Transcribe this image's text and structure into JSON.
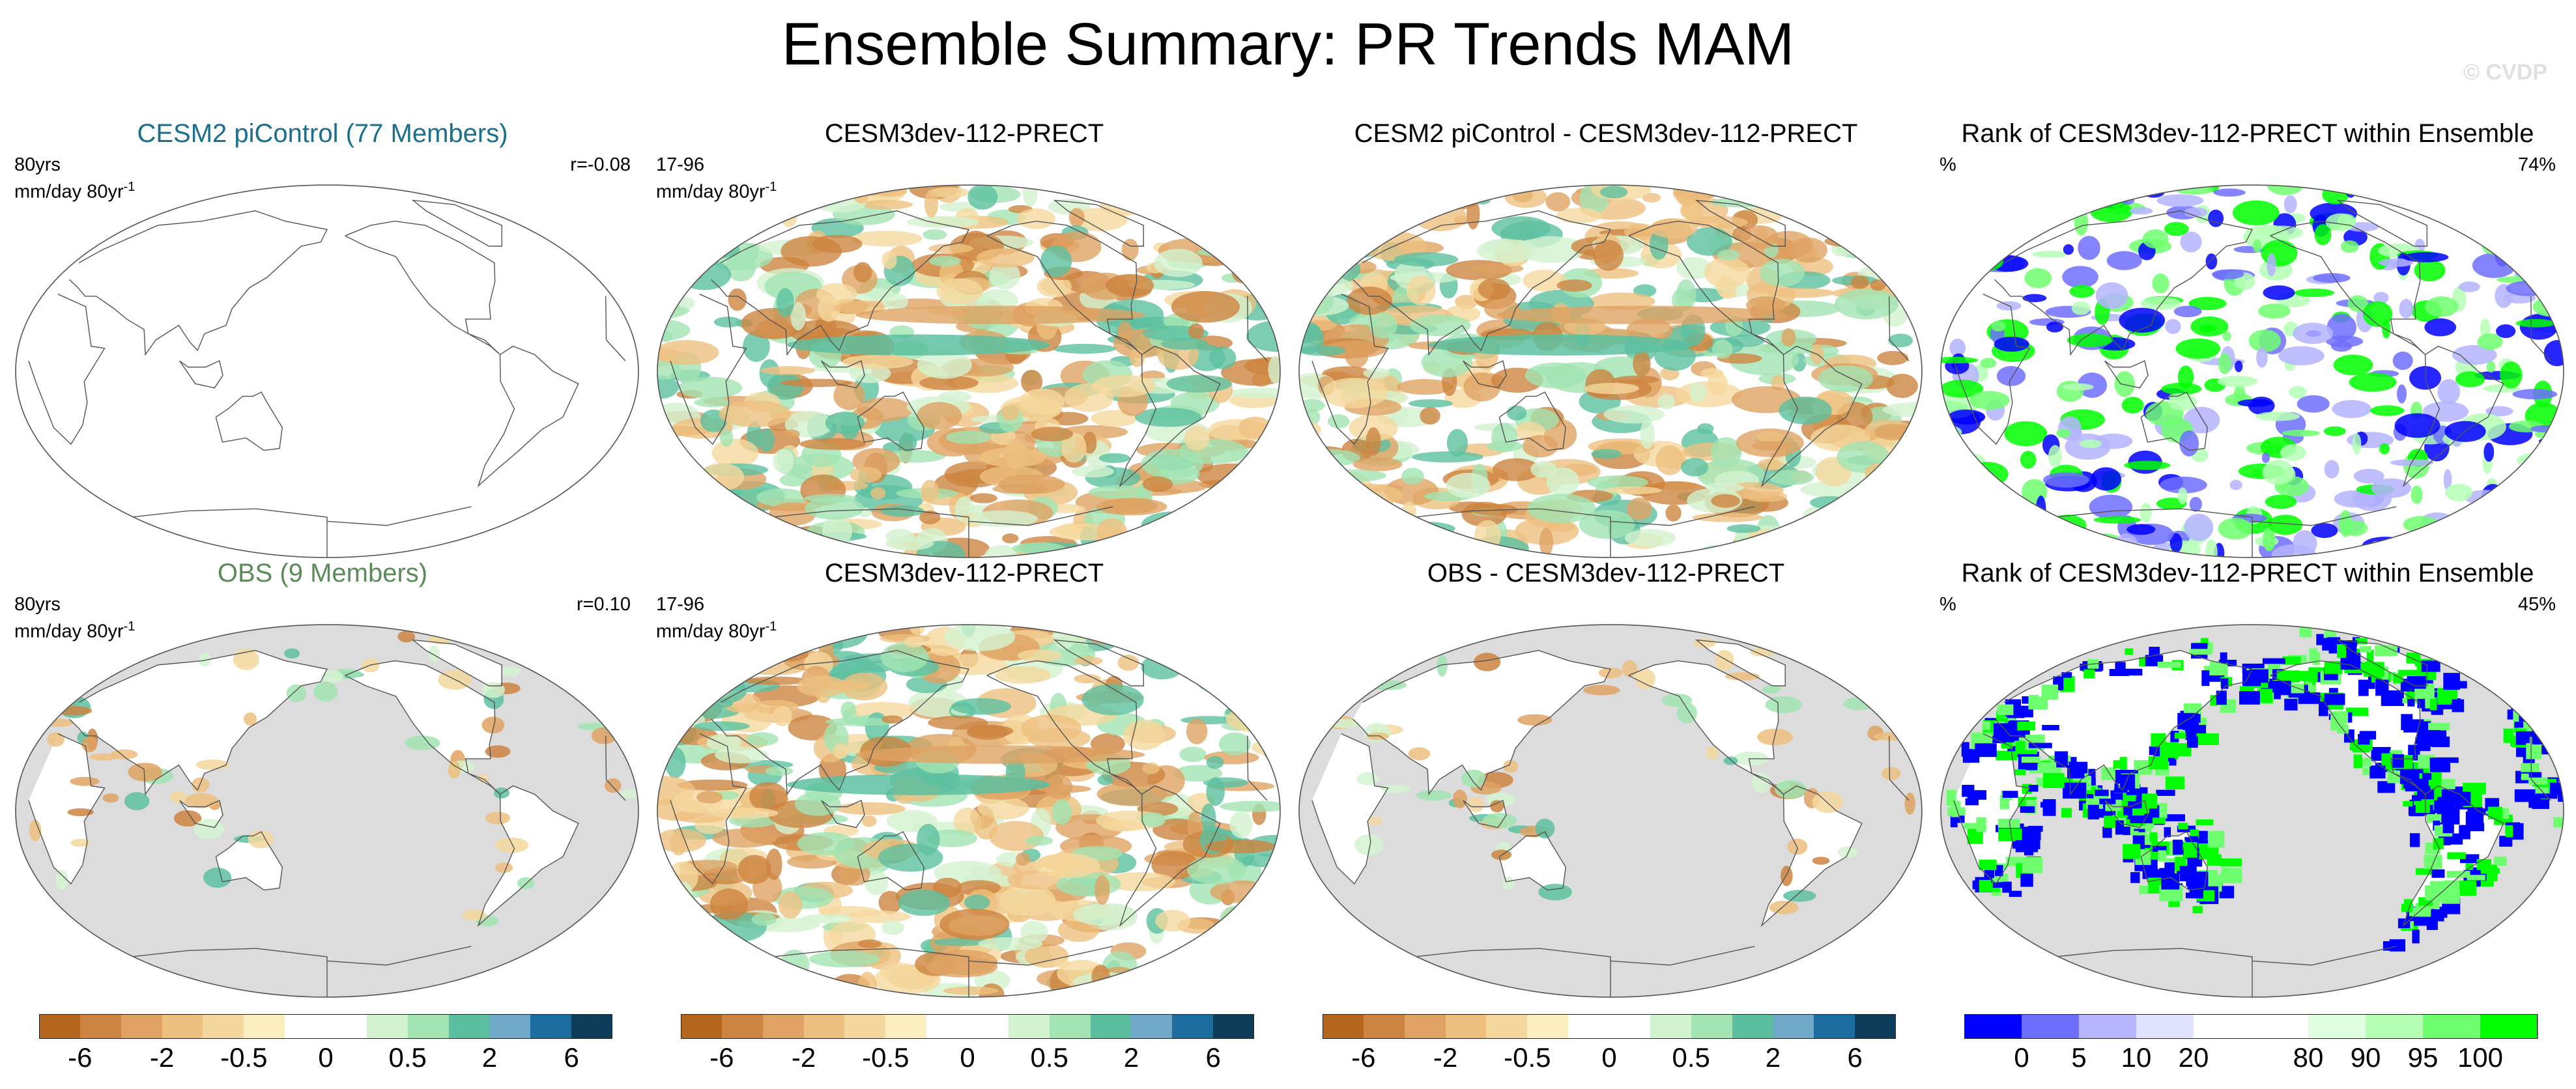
{
  "title": "Ensemble Summary: PR Trends MAM",
  "watermark": "© CVDP",
  "panels": [
    {
      "title": "CESM2 piControl (77 Members)",
      "title_color": "#1b6e8c",
      "l1": "80yrs",
      "l2": "mm/day 80yr",
      "r": "r=-0.08",
      "map": "piControl-mean"
    },
    {
      "title": "CESM3dev-112-PRECT",
      "title_color": "#000000",
      "l1": "17-96",
      "l2": "mm/day 80yr",
      "r": "",
      "map": "trend"
    },
    {
      "title": "CESM2 piControl - CESM3dev-112-PRECT",
      "title_color": "#000000",
      "l1": "",
      "l2": "",
      "r": "",
      "map": "difference"
    },
    {
      "title": "Rank of CESM3dev-112-PRECT within Ensemble",
      "title_color": "#000000",
      "l1": "%",
      "l2": "",
      "r": "74%",
      "map": "rank"
    },
    {
      "title": "OBS (9 Members)",
      "title_color": "#5b8a5b",
      "l1": "80yrs",
      "l2": "mm/day 80yr",
      "r": "r=0.10",
      "map": "obs-mean"
    },
    {
      "title": "CESM3dev-112-PRECT",
      "title_color": "#000000",
      "l1": "17-96",
      "l2": "mm/day 80yr",
      "r": "",
      "map": "trend"
    },
    {
      "title": "OBS - CESM3dev-112-PRECT",
      "title_color": "#000000",
      "l1": "",
      "l2": "",
      "r": "",
      "map": "obs-difference"
    },
    {
      "title": "Rank of CESM3dev-112-PRECT within Ensemble",
      "title_color": "#000000",
      "l1": "%",
      "l2": "",
      "r": "45%",
      "map": "rank-land"
    }
  ],
  "unit_superscript": "-1",
  "colorbars": [
    {
      "name": "precip-trend",
      "colors": [
        "#b5651d",
        "#cd8440",
        "#dfa263",
        "#edc07f",
        "#f5d89e",
        "#fbefc0",
        "#ffffff",
        "#ffffff",
        "#d3f3d0",
        "#a2e4b3",
        "#5cc0a0",
        "#6fa9c7",
        "#1d6c9f",
        "#0e3d5c"
      ],
      "labels": [
        "-6",
        "-2",
        "-0.5",
        "0",
        "0.5",
        "2",
        "6"
      ]
    },
    {
      "name": "rank",
      "colors": [
        "#0000ff",
        "#6e6eff",
        "#b4b4ff",
        "#e0e0ff",
        "#ffffff",
        "#ffffff",
        "#e0ffe0",
        "#b4ffb4",
        "#6eff6e",
        "#00ff00"
      ],
      "labels": [
        "0",
        "5",
        "10",
        "20",
        "80",
        "90",
        "95",
        "100"
      ]
    }
  ],
  "chart_data": {
    "type": "heatmap",
    "title": "Ensemble Summary: PR Trends MAM",
    "season": "MAM",
    "variable": "PR Trends",
    "units": "mm/day 80yr-1",
    "panels": [
      {
        "title": "CESM2 piControl (77 Members)",
        "period": "80yrs",
        "pattern_correlation": -0.08
      },
      {
        "title": "CESM3dev-112-PRECT",
        "period": "17-96"
      },
      {
        "title": "CESM2 piControl - CESM3dev-112-PRECT"
      },
      {
        "title": "Rank of CESM3dev-112-PRECT within Ensemble",
        "units": "%",
        "area_fraction": "74%"
      },
      {
        "title": "OBS (9 Members)",
        "period": "80yrs",
        "pattern_correlation": 0.1
      },
      {
        "title": "CESM3dev-112-PRECT",
        "period": "17-96"
      },
      {
        "title": "OBS - CESM3dev-112-PRECT"
      },
      {
        "title": "Rank of CESM3dev-112-PRECT within Ensemble",
        "units": "%",
        "area_fraction": "45%"
      }
    ],
    "trend_levels": [
      -6,
      -2,
      -0.5,
      0,
      0.5,
      2,
      6
    ],
    "rank_levels": [
      0,
      5,
      10,
      20,
      80,
      90,
      95,
      100
    ],
    "colorbar_labels_trend": [
      "-6",
      "-2",
      "-0.5",
      "0",
      "0.5",
      "2",
      "6"
    ],
    "colorbar_labels_rank": [
      "0",
      "5",
      "10",
      "20",
      "80",
      "90",
      "95",
      "100"
    ]
  }
}
